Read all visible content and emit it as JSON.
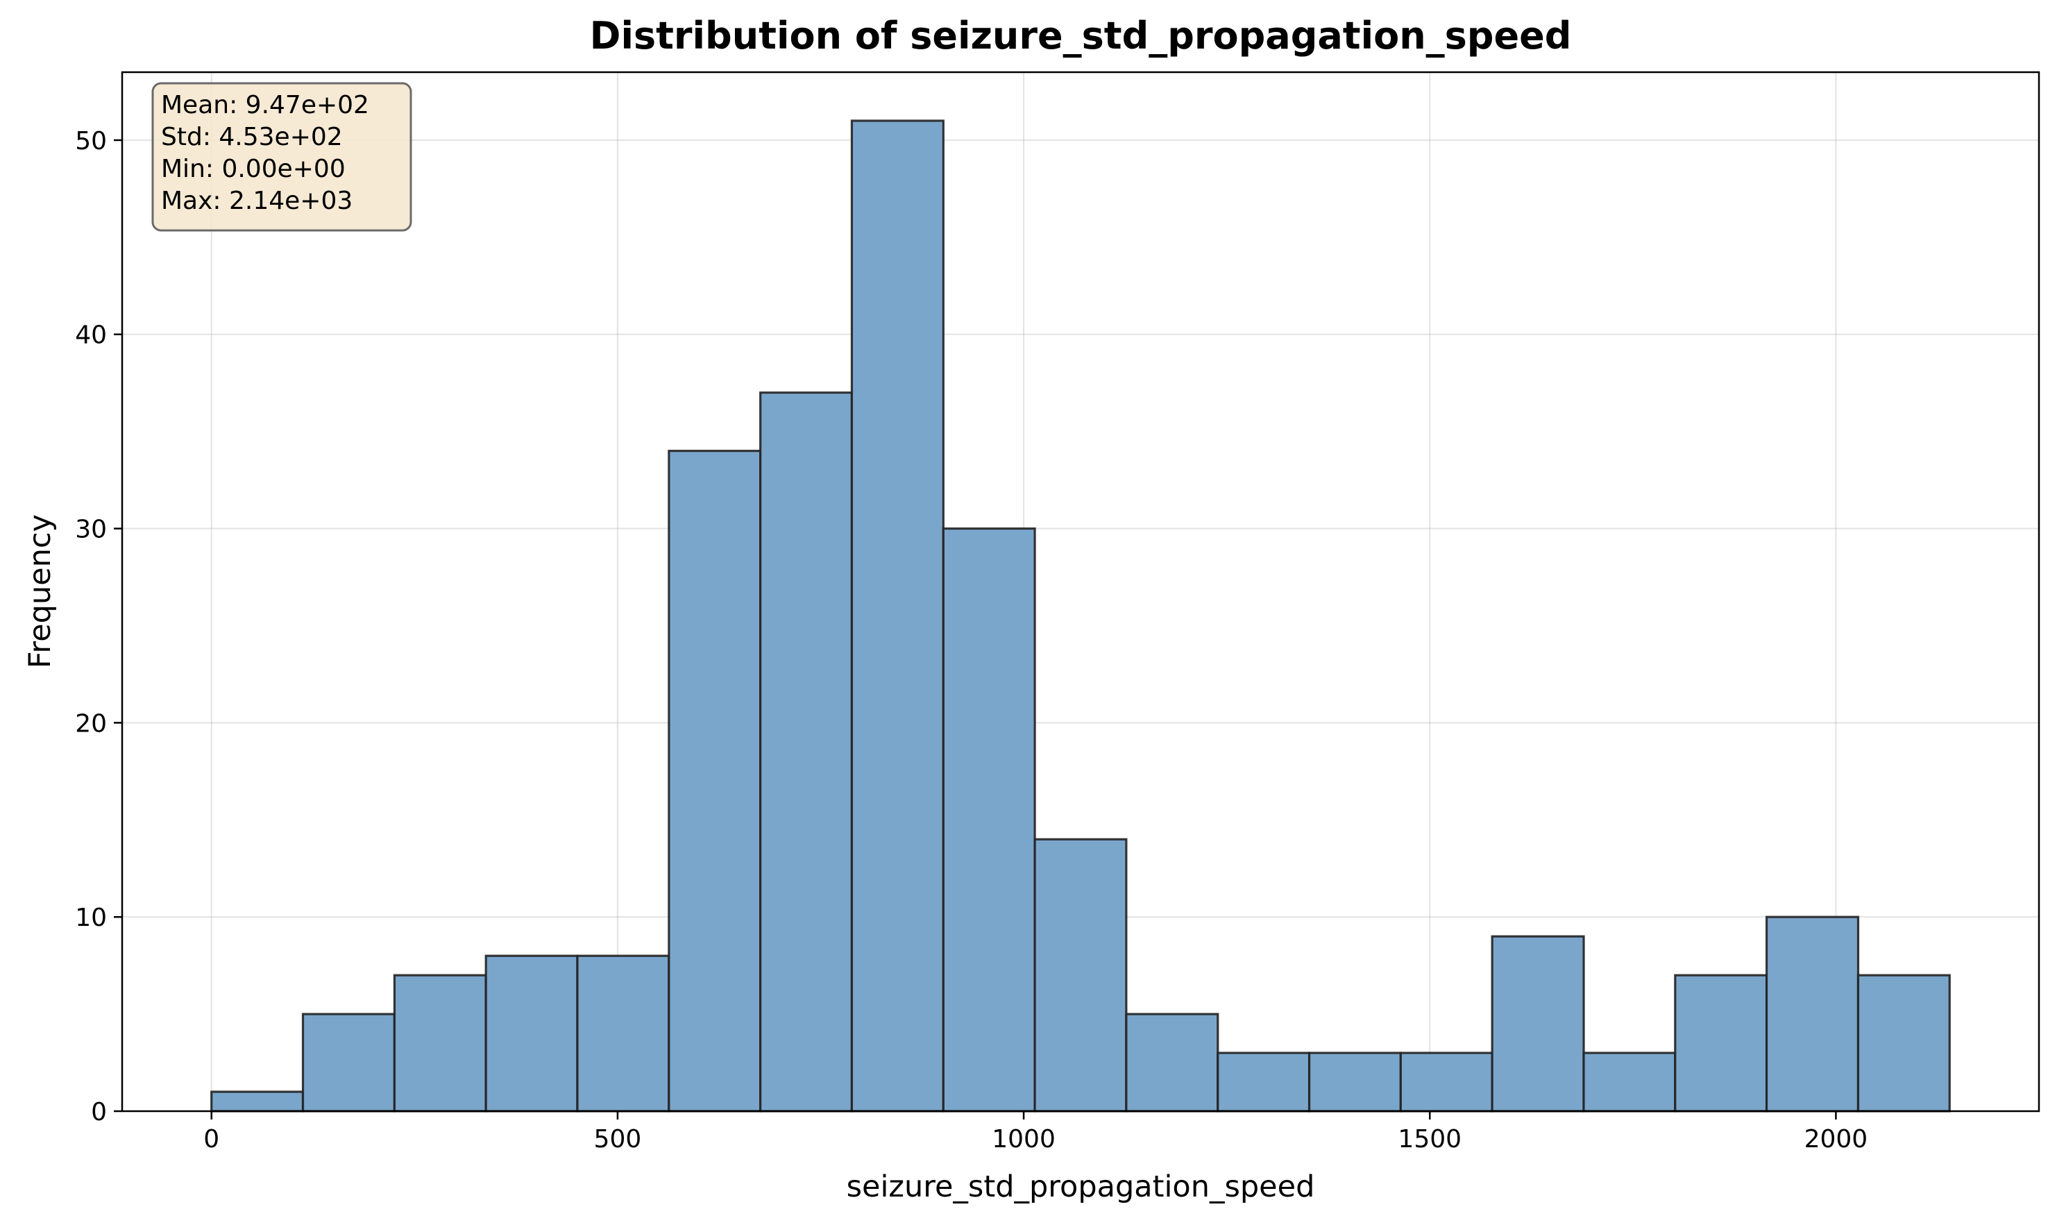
{
  "chart_data": {
    "type": "bar",
    "title": "Distribution of seizure_std_propagation_speed",
    "xlabel": "seizure_std_propagation_speed",
    "ylabel": "Frequency",
    "bin_edges": [
      0,
      112.6,
      225.3,
      337.9,
      450.5,
      563.2,
      675.8,
      788.4,
      901.1,
      1013.7,
      1126.3,
      1239.0,
      1351.6,
      1464.2,
      1576.8,
      1689.5,
      1802.1,
      1914.7,
      2027.4,
      2140.0
    ],
    "values": [
      1,
      5,
      7,
      8,
      8,
      34,
      37,
      51,
      30,
      14,
      5,
      3,
      3,
      3,
      9,
      3,
      7,
      10,
      7
    ],
    "xlim": [
      -110,
      2250
    ],
    "ylim": [
      0,
      53.5
    ],
    "xticks": [
      0,
      500,
      1000,
      1500,
      2000
    ],
    "xtick_labels": [
      "0",
      "500",
      "1000",
      "1500",
      "2000"
    ],
    "yticks": [
      0,
      10,
      20,
      30,
      40,
      50
    ],
    "ytick_labels": [
      "0",
      "10",
      "20",
      "30",
      "40",
      "50"
    ],
    "grid": true,
    "bar_color": "#7ba6cb",
    "edge_color": "#222222",
    "stats_box": {
      "position": "top-left",
      "lines": [
        "Mean: 9.47e+02",
        "Std: 4.53e+02",
        "Min: 0.00e+00",
        "Max: 2.14e+03"
      ],
      "background": "#f5e6cc"
    }
  }
}
